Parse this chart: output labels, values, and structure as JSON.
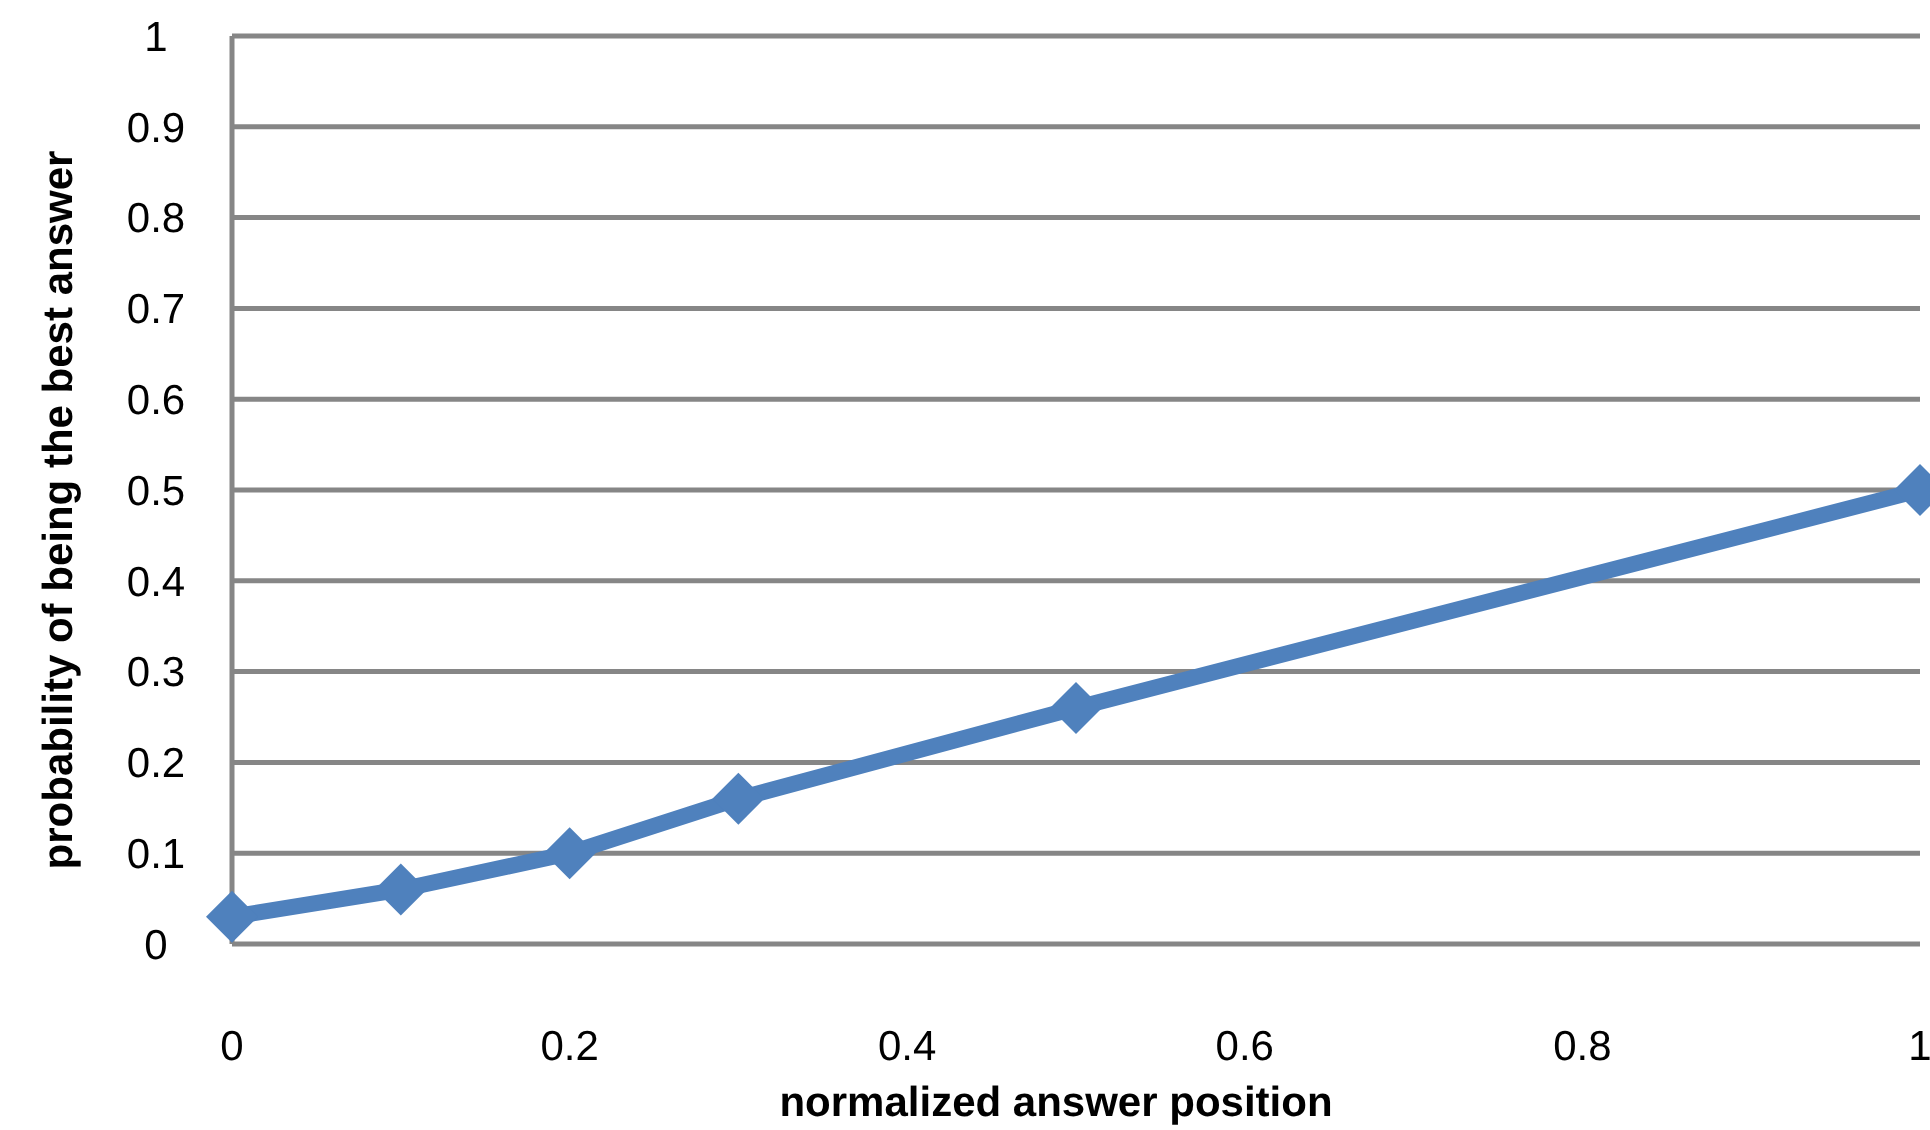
{
  "chart_data": {
    "type": "line",
    "xlabel": "normalized answer position",
    "ylabel": "probability of being the best answer",
    "x": [
      0,
      0.1,
      0.2,
      0.3,
      0.5,
      1
    ],
    "series": [
      {
        "color": "#4f81bd",
        "values": [
          0.03,
          0.06,
          0.1,
          0.16,
          0.26,
          0.5
        ]
      }
    ],
    "xlim": [
      0,
      1
    ],
    "xticks": [
      0,
      0.2,
      0.4,
      0.6,
      0.8,
      1
    ],
    "ylim": [
      0,
      1
    ],
    "yticks": [
      0,
      0.1,
      0.2,
      0.3,
      0.4,
      0.5,
      0.6,
      0.7,
      0.8,
      0.9,
      1
    ],
    "grid": "y",
    "marker": "diamond",
    "line_style": "solid"
  }
}
